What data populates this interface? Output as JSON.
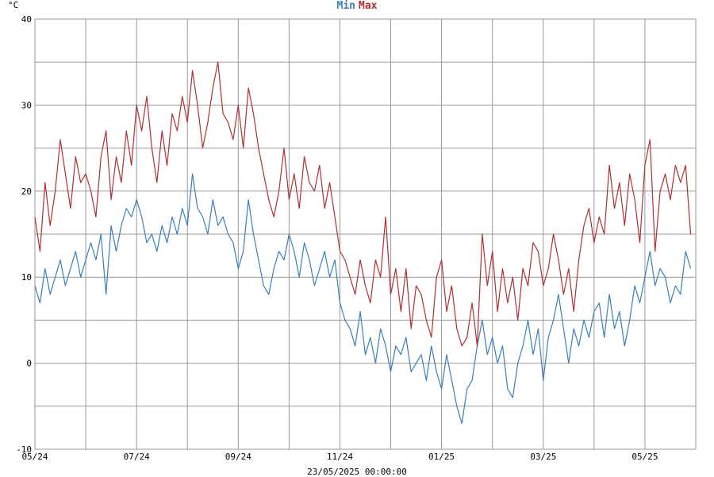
{
  "chart_data": {
    "type": "line",
    "unit_label": "°C",
    "footer_timestamp": "23/05/2025 00:00:00",
    "ylim": [
      -10,
      40
    ],
    "yticks": [
      -10,
      0,
      10,
      20,
      30,
      40
    ],
    "ytick_labels": [
      "-10",
      "0",
      "10",
      "20",
      "30",
      "40"
    ],
    "x_tick_labels": [
      "05/24",
      "07/24",
      "09/24",
      "11/24",
      "01/25",
      "03/25",
      "05/25"
    ],
    "grid": true,
    "legend_placement": "top-center",
    "colors": {
      "min": "#3a7fb9",
      "max": "#b03030",
      "grid": "#999999"
    },
    "x_domain_months": [
      0,
      13
    ],
    "series": [
      {
        "name": "Min",
        "color": "#3a7fb9",
        "points": [
          [
            0.0,
            9
          ],
          [
            0.1,
            7
          ],
          [
            0.2,
            11
          ],
          [
            0.3,
            8
          ],
          [
            0.4,
            10
          ],
          [
            0.5,
            12
          ],
          [
            0.6,
            9
          ],
          [
            0.8,
            13
          ],
          [
            0.9,
            10
          ],
          [
            1.0,
            12
          ],
          [
            1.1,
            14
          ],
          [
            1.2,
            12
          ],
          [
            1.3,
            15
          ],
          [
            1.4,
            8
          ],
          [
            1.5,
            16
          ],
          [
            1.6,
            13
          ],
          [
            1.7,
            16
          ],
          [
            1.8,
            18
          ],
          [
            1.9,
            17
          ],
          [
            2.0,
            19
          ],
          [
            2.1,
            17
          ],
          [
            2.2,
            14
          ],
          [
            2.3,
            15
          ],
          [
            2.4,
            13
          ],
          [
            2.5,
            16
          ],
          [
            2.6,
            14
          ],
          [
            2.7,
            17
          ],
          [
            2.8,
            15
          ],
          [
            2.9,
            18
          ],
          [
            3.0,
            16
          ],
          [
            3.1,
            22
          ],
          [
            3.2,
            18
          ],
          [
            3.3,
            17
          ],
          [
            3.4,
            15
          ],
          [
            3.5,
            19
          ],
          [
            3.6,
            16
          ],
          [
            3.7,
            17
          ],
          [
            3.8,
            15
          ],
          [
            3.9,
            14
          ],
          [
            4.0,
            11
          ],
          [
            4.1,
            13
          ],
          [
            4.2,
            19
          ],
          [
            4.3,
            15
          ],
          [
            4.4,
            12
          ],
          [
            4.5,
            9
          ],
          [
            4.6,
            8
          ],
          [
            4.7,
            11
          ],
          [
            4.8,
            13
          ],
          [
            4.9,
            12
          ],
          [
            5.0,
            15
          ],
          [
            5.1,
            13
          ],
          [
            5.2,
            10
          ],
          [
            5.3,
            14
          ],
          [
            5.4,
            12
          ],
          [
            5.5,
            9
          ],
          [
            5.6,
            11
          ],
          [
            5.7,
            13
          ],
          [
            5.8,
            10
          ],
          [
            5.9,
            12
          ],
          [
            6.0,
            7
          ],
          [
            6.1,
            5
          ],
          [
            6.2,
            4
          ],
          [
            6.3,
            2
          ],
          [
            6.4,
            6
          ],
          [
            6.5,
            1
          ],
          [
            6.6,
            3
          ],
          [
            6.7,
            0
          ],
          [
            6.8,
            4
          ],
          [
            6.9,
            2
          ],
          [
            7.0,
            -1
          ],
          [
            7.1,
            2
          ],
          [
            7.2,
            1
          ],
          [
            7.3,
            3
          ],
          [
            7.4,
            -1
          ],
          [
            7.5,
            0
          ],
          [
            7.6,
            1
          ],
          [
            7.7,
            -2
          ],
          [
            7.8,
            2
          ],
          [
            7.9,
            -1
          ],
          [
            8.0,
            -3
          ],
          [
            8.1,
            1
          ],
          [
            8.2,
            -2
          ],
          [
            8.3,
            -5
          ],
          [
            8.4,
            -7
          ],
          [
            8.5,
            -3
          ],
          [
            8.6,
            -2
          ],
          [
            8.7,
            2
          ],
          [
            8.8,
            5
          ],
          [
            8.9,
            1
          ],
          [
            9.0,
            3
          ],
          [
            9.1,
            0
          ],
          [
            9.2,
            2
          ],
          [
            9.3,
            -3
          ],
          [
            9.4,
            -4
          ],
          [
            9.5,
            0
          ],
          [
            9.6,
            2
          ],
          [
            9.7,
            5
          ],
          [
            9.8,
            1
          ],
          [
            9.9,
            4
          ],
          [
            10.0,
            -2
          ],
          [
            10.1,
            3
          ],
          [
            10.2,
            5
          ],
          [
            10.3,
            8
          ],
          [
            10.4,
            4
          ],
          [
            10.5,
            0
          ],
          [
            10.6,
            4
          ],
          [
            10.7,
            2
          ],
          [
            10.8,
            5
          ],
          [
            10.9,
            3
          ],
          [
            11.0,
            6
          ],
          [
            11.1,
            7
          ],
          [
            11.2,
            3
          ],
          [
            11.3,
            8
          ],
          [
            11.4,
            4
          ],
          [
            11.5,
            6
          ],
          [
            11.6,
            2
          ],
          [
            11.7,
            5
          ],
          [
            11.8,
            9
          ],
          [
            11.9,
            7
          ],
          [
            12.0,
            10
          ],
          [
            12.1,
            13
          ],
          [
            12.2,
            9
          ],
          [
            12.3,
            11
          ],
          [
            12.4,
            10
          ],
          [
            12.5,
            7
          ],
          [
            12.6,
            9
          ],
          [
            12.7,
            8
          ],
          [
            12.8,
            13
          ],
          [
            12.9,
            11
          ]
        ]
      },
      {
        "name": "Max",
        "color": "#b03030",
        "points": [
          [
            0.0,
            17
          ],
          [
            0.1,
            13
          ],
          [
            0.2,
            21
          ],
          [
            0.3,
            16
          ],
          [
            0.4,
            20
          ],
          [
            0.5,
            26
          ],
          [
            0.6,
            22
          ],
          [
            0.7,
            18
          ],
          [
            0.8,
            24
          ],
          [
            0.9,
            21
          ],
          [
            1.0,
            22
          ],
          [
            1.1,
            20
          ],
          [
            1.2,
            17
          ],
          [
            1.3,
            24
          ],
          [
            1.4,
            27
          ],
          [
            1.5,
            19
          ],
          [
            1.6,
            24
          ],
          [
            1.7,
            21
          ],
          [
            1.8,
            27
          ],
          [
            1.9,
            23
          ],
          [
            2.0,
            30
          ],
          [
            2.1,
            27
          ],
          [
            2.2,
            31
          ],
          [
            2.3,
            25
          ],
          [
            2.4,
            21
          ],
          [
            2.5,
            27
          ],
          [
            2.6,
            23
          ],
          [
            2.7,
            29
          ],
          [
            2.8,
            27
          ],
          [
            2.9,
            31
          ],
          [
            3.0,
            28
          ],
          [
            3.1,
            34
          ],
          [
            3.2,
            30
          ],
          [
            3.3,
            25
          ],
          [
            3.4,
            28
          ],
          [
            3.5,
            32
          ],
          [
            3.6,
            35
          ],
          [
            3.7,
            29
          ],
          [
            3.8,
            28
          ],
          [
            3.9,
            26
          ],
          [
            4.0,
            30
          ],
          [
            4.1,
            25
          ],
          [
            4.2,
            32
          ],
          [
            4.3,
            29
          ],
          [
            4.4,
            25
          ],
          [
            4.5,
            22
          ],
          [
            4.6,
            19
          ],
          [
            4.7,
            17
          ],
          [
            4.8,
            20
          ],
          [
            4.9,
            25
          ],
          [
            5.0,
            19
          ],
          [
            5.1,
            22
          ],
          [
            5.2,
            18
          ],
          [
            5.3,
            24
          ],
          [
            5.4,
            21
          ],
          [
            5.5,
            20
          ],
          [
            5.6,
            23
          ],
          [
            5.7,
            18
          ],
          [
            5.8,
            21
          ],
          [
            5.9,
            17
          ],
          [
            6.0,
            13
          ],
          [
            6.1,
            12
          ],
          [
            6.2,
            10
          ],
          [
            6.3,
            8
          ],
          [
            6.4,
            12
          ],
          [
            6.5,
            9
          ],
          [
            6.6,
            7
          ],
          [
            6.7,
            12
          ],
          [
            6.8,
            10
          ],
          [
            6.9,
            17
          ],
          [
            7.0,
            8
          ],
          [
            7.1,
            11
          ],
          [
            7.2,
            6
          ],
          [
            7.3,
            11
          ],
          [
            7.4,
            4
          ],
          [
            7.5,
            9
          ],
          [
            7.6,
            8
          ],
          [
            7.7,
            5
          ],
          [
            7.8,
            3
          ],
          [
            7.9,
            10
          ],
          [
            8.0,
            12
          ],
          [
            8.1,
            6
          ],
          [
            8.2,
            9
          ],
          [
            8.3,
            4
          ],
          [
            8.4,
            2
          ],
          [
            8.5,
            3
          ],
          [
            8.6,
            7
          ],
          [
            8.7,
            2
          ],
          [
            8.8,
            15
          ],
          [
            8.9,
            9
          ],
          [
            9.0,
            13
          ],
          [
            9.1,
            6
          ],
          [
            9.2,
            11
          ],
          [
            9.3,
            7
          ],
          [
            9.4,
            10
          ],
          [
            9.5,
            5
          ],
          [
            9.6,
            11
          ],
          [
            9.7,
            9
          ],
          [
            9.8,
            14
          ],
          [
            9.9,
            13
          ],
          [
            10.0,
            9
          ],
          [
            10.1,
            11
          ],
          [
            10.2,
            15
          ],
          [
            10.3,
            12
          ],
          [
            10.4,
            8
          ],
          [
            10.5,
            11
          ],
          [
            10.6,
            6
          ],
          [
            10.7,
            12
          ],
          [
            10.8,
            16
          ],
          [
            10.9,
            18
          ],
          [
            11.0,
            14
          ],
          [
            11.1,
            17
          ],
          [
            11.2,
            15
          ],
          [
            11.3,
            23
          ],
          [
            11.4,
            18
          ],
          [
            11.5,
            21
          ],
          [
            11.6,
            16
          ],
          [
            11.7,
            22
          ],
          [
            11.8,
            19
          ],
          [
            11.9,
            14
          ],
          [
            12.0,
            23
          ],
          [
            12.1,
            26
          ],
          [
            12.2,
            13
          ],
          [
            12.3,
            20
          ],
          [
            12.4,
            22
          ],
          [
            12.5,
            19
          ],
          [
            12.6,
            23
          ],
          [
            12.7,
            21
          ],
          [
            12.8,
            23
          ],
          [
            12.9,
            15
          ]
        ]
      }
    ]
  }
}
